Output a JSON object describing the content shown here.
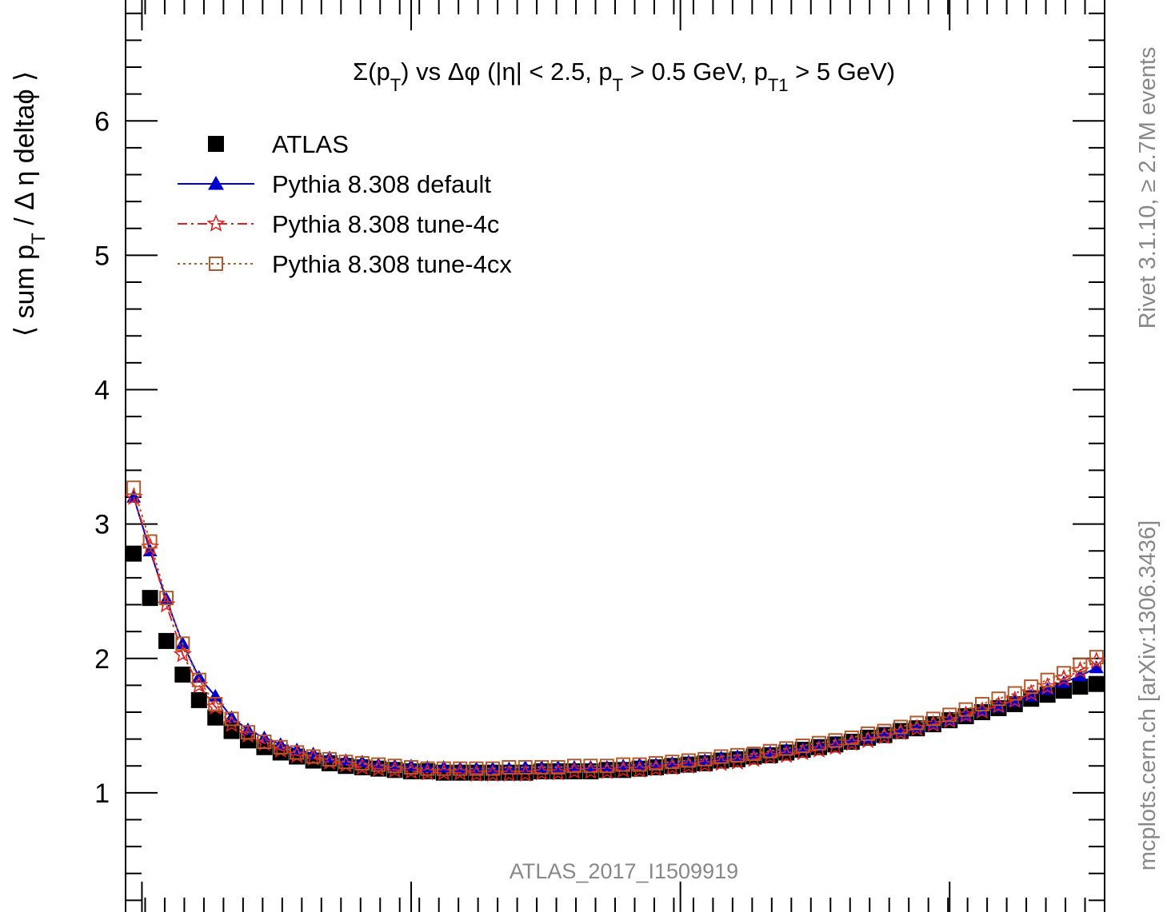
{
  "chart_data": {
    "type": "scatter",
    "title": "Σ(p_T) vs Δφ (|η| < 2.5, p_T > 0.5 GeV, p_T1 > 5 GeV)",
    "title_parts": [
      "Σ(p",
      "T",
      ") vs Δφ (|η| < 2.5, p",
      "T",
      " > 0.5 GeV, p",
      "T1",
      " > 5 GeV)"
    ],
    "ylabel": "⟨ sum p_T / Δ η deltaϕ ⟩",
    "ylabel_parts": [
      "⟨ sum p",
      "T",
      " / Δ η deltaϕ ⟩"
    ],
    "xlabel": "",
    "ylim": [
      0,
      6.9
    ],
    "xlim": [
      0,
      1
    ],
    "y_ticks": [
      1,
      2,
      3,
      4,
      5,
      6
    ],
    "grid": false,
    "legend_position": "top-left",
    "analysis_label": "ATLAS_2017_I1509919",
    "side_label_top": "Rivet 3.1.10, ≥ 2.7M events",
    "side_label_bottom": "mcplots.cern.ch [arXiv:1306.3436]",
    "series": [
      {
        "name": "ATLAS",
        "color": "#000000",
        "marker": "filled-square",
        "x": [
          0.0083,
          0.025,
          0.0417,
          0.0583,
          0.075,
          0.0917,
          0.1083,
          0.125,
          0.1417,
          0.1583,
          0.175,
          0.1917,
          0.2083,
          0.225,
          0.2417,
          0.2583,
          0.275,
          0.2917,
          0.3083,
          0.325,
          0.3417,
          0.3583,
          0.375,
          0.3917,
          0.4083,
          0.425,
          0.4417,
          0.4583,
          0.475,
          0.4917,
          0.5083,
          0.525,
          0.5417,
          0.5583,
          0.575,
          0.5917,
          0.6083,
          0.625,
          0.6417,
          0.6583,
          0.675,
          0.6917,
          0.7083,
          0.725,
          0.7417,
          0.7583,
          0.775,
          0.7917,
          0.8083,
          0.825,
          0.8417,
          0.8583,
          0.875,
          0.8917,
          0.9083,
          0.925,
          0.9417,
          0.9583,
          0.975,
          0.9917
        ],
        "y": [
          2.78,
          2.45,
          2.13,
          1.88,
          1.69,
          1.56,
          1.46,
          1.39,
          1.34,
          1.3,
          1.27,
          1.24,
          1.22,
          1.2,
          1.19,
          1.18,
          1.17,
          1.16,
          1.16,
          1.15,
          1.15,
          1.15,
          1.15,
          1.15,
          1.15,
          1.16,
          1.16,
          1.16,
          1.16,
          1.17,
          1.17,
          1.18,
          1.19,
          1.2,
          1.21,
          1.22,
          1.24,
          1.25,
          1.27,
          1.28,
          1.3,
          1.32,
          1.34,
          1.36,
          1.38,
          1.41,
          1.43,
          1.46,
          1.48,
          1.51,
          1.54,
          1.57,
          1.6,
          1.63,
          1.66,
          1.7,
          1.73,
          1.76,
          1.79,
          1.81
        ]
      },
      {
        "name": "Pythia 8.308 default",
        "color": "#0000cc",
        "marker": "filled-triangle",
        "line": "solid",
        "x": [
          0.0083,
          0.025,
          0.0417,
          0.0583,
          0.075,
          0.0917,
          0.1083,
          0.125,
          0.1417,
          0.1583,
          0.175,
          0.1917,
          0.2083,
          0.225,
          0.2417,
          0.2583,
          0.275,
          0.2917,
          0.3083,
          0.325,
          0.3417,
          0.3583,
          0.375,
          0.3917,
          0.4083,
          0.425,
          0.4417,
          0.4583,
          0.475,
          0.4917,
          0.5083,
          0.525,
          0.5417,
          0.5583,
          0.575,
          0.5917,
          0.6083,
          0.625,
          0.6417,
          0.6583,
          0.675,
          0.6917,
          0.7083,
          0.725,
          0.7417,
          0.7583,
          0.775,
          0.7917,
          0.8083,
          0.825,
          0.8417,
          0.8583,
          0.875,
          0.8917,
          0.9083,
          0.925,
          0.9417,
          0.9583,
          0.975,
          0.9917
        ],
        "y": [
          3.2,
          2.8,
          2.44,
          2.11,
          1.86,
          1.72,
          1.56,
          1.47,
          1.41,
          1.36,
          1.32,
          1.29,
          1.26,
          1.24,
          1.23,
          1.21,
          1.2,
          1.2,
          1.19,
          1.19,
          1.18,
          1.18,
          1.18,
          1.18,
          1.19,
          1.19,
          1.19,
          1.19,
          1.19,
          1.19,
          1.2,
          1.21,
          1.21,
          1.22,
          1.23,
          1.24,
          1.26,
          1.27,
          1.28,
          1.3,
          1.32,
          1.33,
          1.35,
          1.37,
          1.39,
          1.41,
          1.44,
          1.46,
          1.49,
          1.51,
          1.54,
          1.57,
          1.61,
          1.64,
          1.68,
          1.72,
          1.77,
          1.82,
          1.87,
          1.93
        ]
      },
      {
        "name": "Pythia 8.308 tune-4c",
        "color": "#dd2222",
        "marker": "open-star",
        "line": "dash-dot",
        "x": [
          0.0083,
          0.025,
          0.0417,
          0.0583,
          0.075,
          0.0917,
          0.1083,
          0.125,
          0.1417,
          0.1583,
          0.175,
          0.1917,
          0.2083,
          0.225,
          0.2417,
          0.2583,
          0.275,
          0.2917,
          0.3083,
          0.325,
          0.3417,
          0.3583,
          0.375,
          0.3917,
          0.4083,
          0.425,
          0.4417,
          0.4583,
          0.475,
          0.4917,
          0.5083,
          0.525,
          0.5417,
          0.5583,
          0.575,
          0.5917,
          0.6083,
          0.625,
          0.6417,
          0.6583,
          0.675,
          0.6917,
          0.7083,
          0.725,
          0.7417,
          0.7583,
          0.775,
          0.7917,
          0.8083,
          0.825,
          0.8417,
          0.8583,
          0.875,
          0.8917,
          0.9083,
          0.925,
          0.9417,
          0.9583,
          0.975,
          0.9917
        ],
        "y": [
          3.2,
          2.83,
          2.4,
          2.03,
          1.8,
          1.64,
          1.51,
          1.43,
          1.37,
          1.32,
          1.28,
          1.26,
          1.23,
          1.21,
          1.19,
          1.18,
          1.17,
          1.16,
          1.15,
          1.15,
          1.15,
          1.14,
          1.14,
          1.14,
          1.14,
          1.15,
          1.15,
          1.16,
          1.16,
          1.16,
          1.17,
          1.17,
          1.18,
          1.19,
          1.2,
          1.21,
          1.22,
          1.23,
          1.25,
          1.27,
          1.28,
          1.3,
          1.32,
          1.34,
          1.37,
          1.39,
          1.42,
          1.45,
          1.48,
          1.51,
          1.54,
          1.58,
          1.61,
          1.65,
          1.69,
          1.74,
          1.79,
          1.85,
          1.91,
          1.98
        ]
      },
      {
        "name": "Pythia 8.308 tune-4cx",
        "color": "#b5582a",
        "marker": "open-square",
        "line": "dotted",
        "x": [
          0.0083,
          0.025,
          0.0417,
          0.0583,
          0.075,
          0.0917,
          0.1083,
          0.125,
          0.1417,
          0.1583,
          0.175,
          0.1917,
          0.2083,
          0.225,
          0.2417,
          0.2583,
          0.275,
          0.2917,
          0.3083,
          0.325,
          0.3417,
          0.3583,
          0.375,
          0.3917,
          0.4083,
          0.425,
          0.4417,
          0.4583,
          0.475,
          0.4917,
          0.5083,
          0.525,
          0.5417,
          0.5583,
          0.575,
          0.5917,
          0.6083,
          0.625,
          0.6417,
          0.6583,
          0.675,
          0.6917,
          0.7083,
          0.725,
          0.7417,
          0.7583,
          0.775,
          0.7917,
          0.8083,
          0.825,
          0.8417,
          0.8583,
          0.875,
          0.8917,
          0.9083,
          0.925,
          0.9417,
          0.9583,
          0.975,
          0.9917
        ],
        "y": [
          3.27,
          2.87,
          2.45,
          2.11,
          1.84,
          1.66,
          1.55,
          1.45,
          1.38,
          1.34,
          1.3,
          1.27,
          1.25,
          1.23,
          1.22,
          1.21,
          1.2,
          1.19,
          1.18,
          1.18,
          1.18,
          1.18,
          1.18,
          1.19,
          1.19,
          1.19,
          1.19,
          1.2,
          1.2,
          1.2,
          1.21,
          1.21,
          1.22,
          1.23,
          1.24,
          1.25,
          1.27,
          1.28,
          1.29,
          1.31,
          1.33,
          1.35,
          1.37,
          1.39,
          1.41,
          1.44,
          1.46,
          1.49,
          1.52,
          1.55,
          1.58,
          1.62,
          1.66,
          1.7,
          1.74,
          1.79,
          1.84,
          1.89,
          1.95,
          2.01
        ]
      }
    ]
  }
}
